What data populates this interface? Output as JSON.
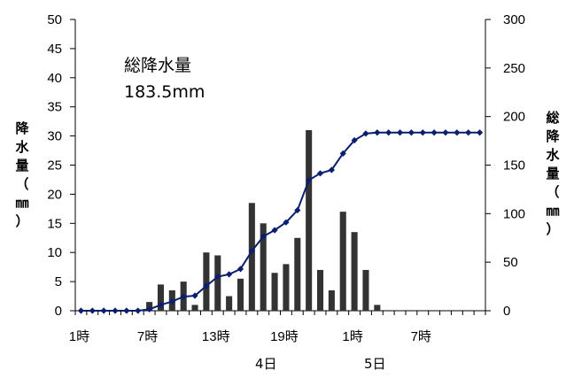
{
  "chart_data": {
    "type": "bar+line",
    "title": "",
    "x": [
      1,
      2,
      3,
      4,
      5,
      6,
      7,
      8,
      9,
      10,
      11,
      12,
      13,
      14,
      15,
      16,
      17,
      18,
      19,
      20,
      21,
      22,
      23,
      24,
      25,
      26,
      27,
      28,
      29,
      30,
      31,
      32,
      33,
      34,
      35,
      36
    ],
    "x_tick_labels": [
      "1時",
      "7時",
      "13時",
      "19時",
      "1時",
      "7時"
    ],
    "day_labels": [
      "4日",
      "5日"
    ],
    "series": [
      {
        "name": "",
        "type": "bar",
        "axis": "left",
        "values": [
          0,
          0,
          0,
          0,
          0,
          0,
          1.5,
          4.5,
          3.5,
          5,
          1,
          10,
          9.5,
          2.5,
          5.5,
          18.5,
          15,
          6.5,
          8,
          12.5,
          31,
          7,
          3.5,
          17,
          13.5,
          7,
          1,
          0,
          0,
          0,
          0,
          0,
          0,
          0,
          0,
          0
        ]
      },
      {
        "name": "",
        "type": "line",
        "axis": "right",
        "values": [
          0,
          0,
          0,
          0,
          0,
          0,
          1.5,
          6,
          9.5,
          14.5,
          15.5,
          25.5,
          35,
          37.5,
          43,
          61.5,
          76.5,
          83,
          91,
          103.5,
          134.5,
          141.5,
          145,
          162,
          175.5,
          182.5,
          183.5,
          183.5,
          183.5,
          183.5,
          183.5,
          183.5,
          183.5,
          183.5,
          183.5,
          183.5
        ]
      }
    ],
    "ylabel_left": "降水量（㎜）",
    "ylabel_right": "総降水量（㎜）",
    "ylim_left": [
      0,
      50
    ],
    "ylim_right": [
      0,
      300
    ],
    "yticks_left": [
      "0",
      "5",
      "10",
      "15",
      "20",
      "25",
      "30",
      "35",
      "40",
      "45",
      "50"
    ],
    "yticks_right": [
      "0",
      "50",
      "100",
      "150",
      "200",
      "250",
      "300"
    ],
    "annotation": [
      "総降水量",
      "183.5mm"
    ],
    "colors": {
      "bars": "#333333",
      "line": "#0b1f6e",
      "marker": "#0b1f6e"
    },
    "grid": false,
    "legend": "none"
  }
}
